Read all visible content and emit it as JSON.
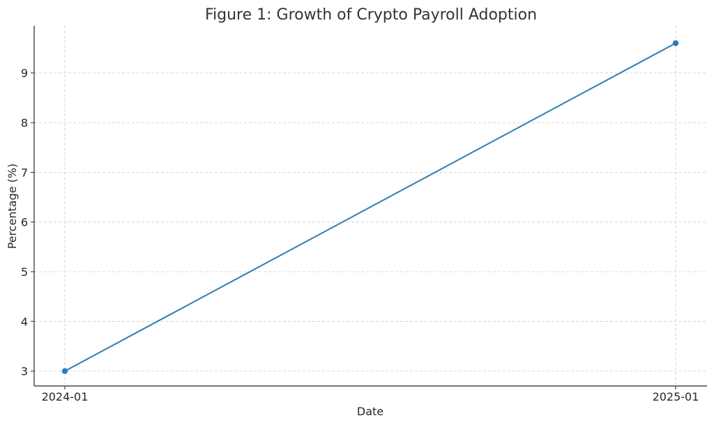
{
  "chart_data": {
    "type": "line",
    "title": "Figure 1: Growth of Crypto Payroll Adoption",
    "xlabel": "Date",
    "ylabel": "Percentage (%)",
    "x": [
      "2024-01",
      "2025-01"
    ],
    "x_tick_labels": [
      "2024-01",
      "2025-01"
    ],
    "series": [
      {
        "values": [
          3.0,
          9.6
        ],
        "color": "#2e7cb5",
        "marker": "circle"
      }
    ],
    "ylim": [
      2.7,
      9.95
    ],
    "y_ticks": [
      3,
      4,
      5,
      6,
      7,
      8,
      9
    ],
    "grid": true,
    "legend": "none"
  }
}
